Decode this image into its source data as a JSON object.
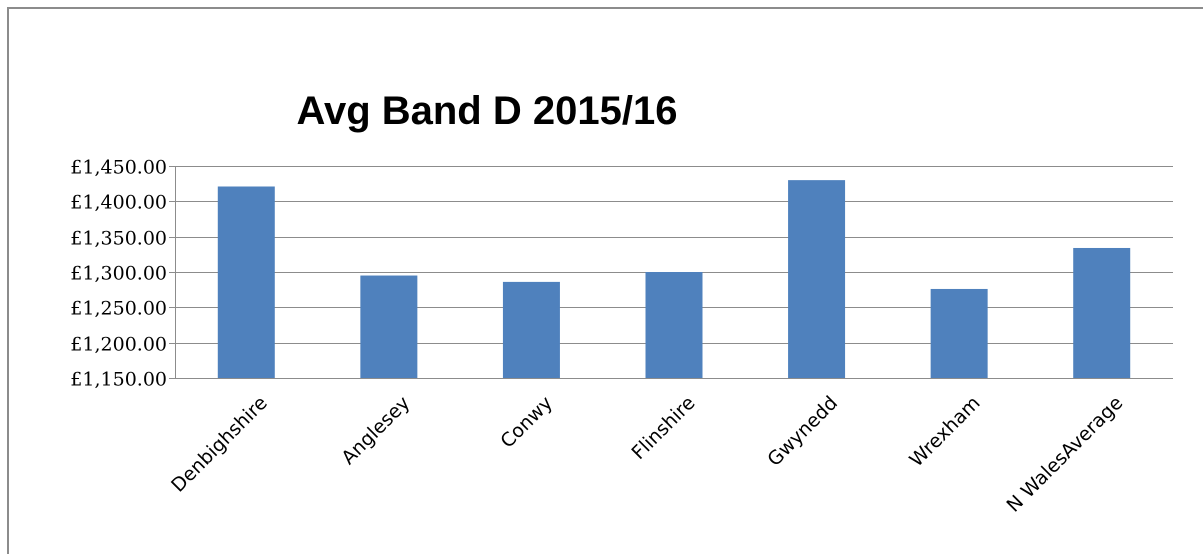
{
  "chart_data": {
    "type": "bar",
    "title": "Avg Band D 2015/16",
    "xlabel": "",
    "ylabel": "",
    "categories": [
      "Denbighshire",
      "Anglesey",
      "Conwy",
      "Flinshire",
      "Gwynedd",
      "Wrexham",
      "N WalesAverage"
    ],
    "values": [
      1421,
      1295,
      1286,
      1300,
      1430,
      1276,
      1334
    ],
    "ylim": [
      1150,
      1450
    ],
    "yticks": [
      1150,
      1200,
      1250,
      1300,
      1350,
      1400,
      1450
    ],
    "ytick_labels": [
      "£1,150.00",
      "£1,200.00",
      "£1,250.00",
      "£1,300.00",
      "£1,350.00",
      "£1,400.00",
      "£1,450.00"
    ],
    "grid": true,
    "legend": "none",
    "bar_color": "#4f81bd",
    "grid_color": "#8c8c8c"
  }
}
